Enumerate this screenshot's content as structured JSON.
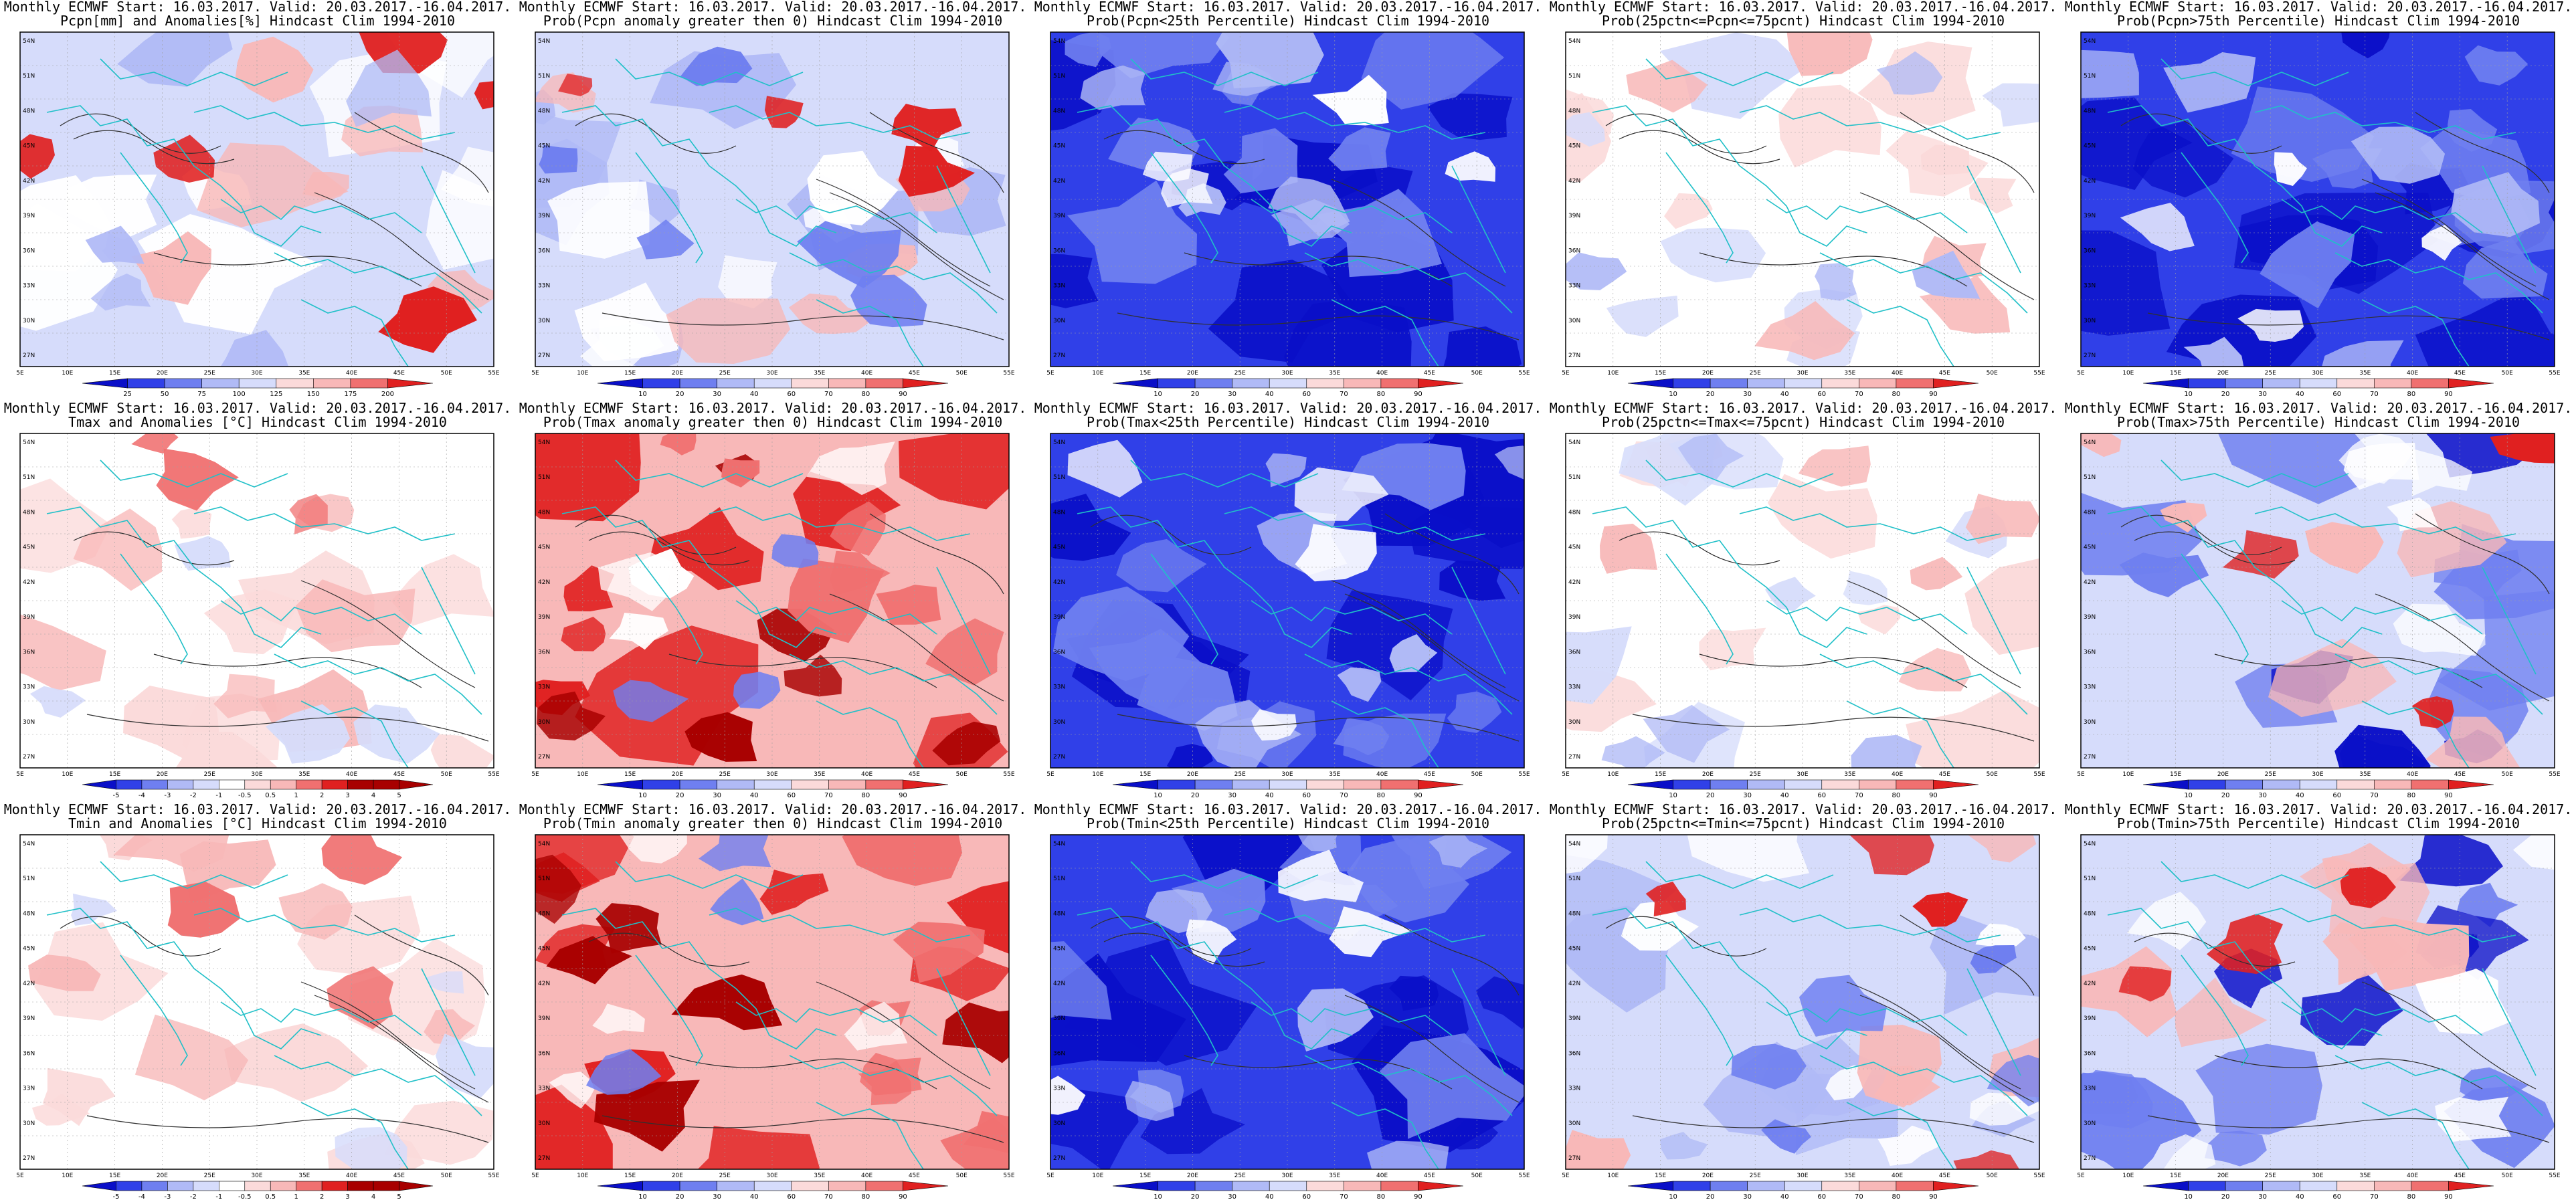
{
  "panels": [
    {
      "line1": "Monthly ECMWF Start: 16.03.2017. Valid: 20.03.2017.-16.04.2017.",
      "line2": "Pcpn[mm] and Anomalies[%] Hindcast Clim 1994-2010",
      "scheme": "anom",
      "cb": [
        "25",
        "50",
        "75",
        "100",
        "125",
        "150",
        "175",
        "200"
      ]
    },
    {
      "line1": "Monthly ECMWF Start: 16.03.2017. Valid: 20.03.2017.-16.04.2017.",
      "line2": "Prob(Pcpn anomaly greater then 0) Hindcast Clim 1994-2010",
      "scheme": "mixed",
      "cb": [
        "10",
        "20",
        "30",
        "40",
        "60",
        "70",
        "80",
        "90"
      ]
    },
    {
      "line1": "Monthly ECMWF Start: 16.03.2017. Valid: 20.03.2017.-16.04.2017.",
      "line2": "Prob(Pcpn<25th Percentile) Hindcast Clim 1994-2010",
      "scheme": "blue",
      "cb": [
        "10",
        "20",
        "30",
        "40",
        "60",
        "70",
        "80",
        "90"
      ]
    },
    {
      "line1": "Monthly ECMWF Start: 16.03.2017. Valid: 20.03.2017.-16.04.2017.",
      "line2": "Prob(25pctn<=Pcpn<=75pcnt) Hindcast Clim 1994-2010",
      "scheme": "light",
      "cb": [
        "10",
        "20",
        "30",
        "40",
        "60",
        "70",
        "80",
        "90"
      ]
    },
    {
      "line1": "Monthly ECMWF Start: 16.03.2017. Valid: 20.03.2017.-16.04.2017.",
      "line2": "Prob(Pcpn>75th Percentile) Hindcast Clim 1994-2010",
      "scheme": "blue",
      "cb": [
        "10",
        "20",
        "30",
        "40",
        "60",
        "70",
        "80",
        "90"
      ]
    },
    {
      "line1": "Monthly ECMWF Start: 16.03.2017. Valid: 20.03.2017.-16.04.2017.",
      "line2": "Tmax and Anomalies [°C] Hindcast Clim 1994-2010",
      "scheme": "warm",
      "cb": [
        "-5",
        "-4",
        "-3",
        "-2",
        "-1",
        "-0.5",
        "0.5",
        "1",
        "2",
        "3",
        "4",
        "5"
      ]
    },
    {
      "line1": "Monthly ECMWF Start: 16.03.2017. Valid: 20.03.2017.-16.04.2017.",
      "line2": "Prob(Tmax anomaly greater then 0) Hindcast Clim 1994-2010",
      "scheme": "hot",
      "cb": [
        "10",
        "20",
        "30",
        "40",
        "60",
        "70",
        "80",
        "90"
      ]
    },
    {
      "line1": "Monthly ECMWF Start: 16.03.2017. Valid: 20.03.2017.-16.04.2017.",
      "line2": "Prob(Tmax<25th Percentile) Hindcast Clim 1994-2010",
      "scheme": "blue",
      "cb": [
        "10",
        "20",
        "30",
        "40",
        "60",
        "70",
        "80",
        "90"
      ]
    },
    {
      "line1": "Monthly ECMWF Start: 16.03.2017. Valid: 20.03.2017.-16.04.2017.",
      "line2": "Prob(25pctn<=Tmax<=75pcnt) Hindcast Clim 1994-2010",
      "scheme": "light",
      "cb": [
        "10",
        "20",
        "30",
        "40",
        "60",
        "70",
        "80",
        "90"
      ]
    },
    {
      "line1": "Monthly ECMWF Start: 16.03.2017. Valid: 20.03.2017.-16.04.2017.",
      "line2": "Prob(Tmax>75th Percentile) Hindcast Clim 1994-2010",
      "scheme": "coolwarm",
      "cb": [
        "10",
        "20",
        "30",
        "40",
        "60",
        "70",
        "80",
        "90"
      ]
    },
    {
      "line1": "Monthly ECMWF Start: 16.03.2017. Valid: 20.03.2017.-16.04.2017.",
      "line2": "Tmin and Anomalies [°C] Hindcast Clim 1994-2010",
      "scheme": "warm",
      "cb": [
        "-5",
        "-4",
        "-3",
        "-2",
        "-1",
        "-0.5",
        "0.5",
        "1",
        "2",
        "3",
        "4",
        "5"
      ]
    },
    {
      "line1": "Monthly ECMWF Start: 16.03.2017. Valid: 20.03.2017.-16.04.2017.",
      "line2": "Prob(Tmin anomaly greater then 0) Hindcast Clim 1994-2010",
      "scheme": "hot",
      "cb": [
        "10",
        "20",
        "30",
        "40",
        "60",
        "70",
        "80",
        "90"
      ]
    },
    {
      "line1": "Monthly ECMWF Start: 16.03.2017. Valid: 20.03.2017.-16.04.2017.",
      "line2": "Prob(Tmin<25th Percentile) Hindcast Clim 1994-2010",
      "scheme": "blue",
      "cb": [
        "10",
        "20",
        "30",
        "40",
        "60",
        "70",
        "80",
        "90"
      ]
    },
    {
      "line1": "Monthly ECMWF Start: 16.03.2017. Valid: 20.03.2017.-16.04.2017.",
      "line2": "Prob(25pctn<=Tmin<=75pcnt) Hindcast Clim 1994-2010",
      "scheme": "mixed",
      "cb": [
        "10",
        "20",
        "30",
        "40",
        "60",
        "70",
        "80",
        "90"
      ]
    },
    {
      "line1": "Monthly ECMWF Start: 16.03.2017. Valid: 20.03.2017.-16.04.2017.",
      "line2": "Prob(Tmin>75th Percentile) Hindcast Clim 1994-2010",
      "scheme": "coolwarm",
      "cb": [
        "10",
        "20",
        "30",
        "40",
        "60",
        "70",
        "80",
        "90"
      ]
    }
  ],
  "lat_labels": [
    "54N",
    "51N",
    "48N",
    "45N",
    "42N",
    "39N",
    "36N",
    "33N",
    "30N",
    "27N"
  ],
  "lon_labels": [
    "5E",
    "10E",
    "15E",
    "20E",
    "25E",
    "30E",
    "35E",
    "40E",
    "45E",
    "50E",
    "55E"
  ],
  "colors": {
    "deepred": "#a80000",
    "red": "#e02020",
    "midred": "#f07070",
    "pink": "#f8b8b8",
    "lightpink": "#fbdada",
    "white": "#ffffff",
    "lightblue": "#d6dcfb",
    "paleblue": "#b0baf6",
    "blue": "#6f7ff0",
    "midblue": "#3040e8",
    "deepblue": "#0a0fc8",
    "coast": "#20c0c8",
    "contour": "#303030"
  }
}
